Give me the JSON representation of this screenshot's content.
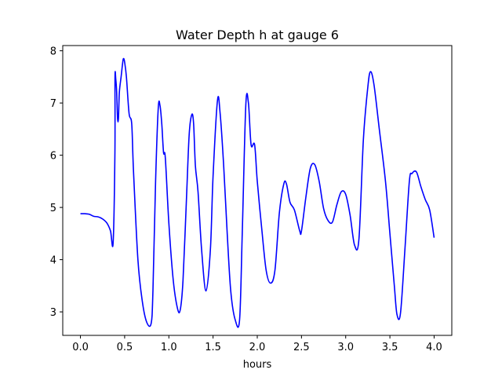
{
  "chart_data": {
    "type": "line",
    "title": "Water Depth h at gauge 6",
    "xlabel": "hours",
    "ylabel": "",
    "xlim": [
      -0.2,
      4.2
    ],
    "ylim": [
      2.55,
      8.1
    ],
    "grid": false,
    "legend": "none",
    "xticks": [
      {
        "value": 0.0,
        "label": "0.0"
      },
      {
        "value": 0.5,
        "label": "0.5"
      },
      {
        "value": 1.0,
        "label": "1.0"
      },
      {
        "value": 1.5,
        "label": "1.5"
      },
      {
        "value": 2.0,
        "label": "2.0"
      },
      {
        "value": 2.5,
        "label": "2.5"
      },
      {
        "value": 3.0,
        "label": "3.0"
      },
      {
        "value": 3.5,
        "label": "3.5"
      },
      {
        "value": 4.0,
        "label": "4.0"
      }
    ],
    "yticks": [
      {
        "value": 3,
        "label": "3"
      },
      {
        "value": 4,
        "label": "4"
      },
      {
        "value": 5,
        "label": "5"
      },
      {
        "value": 6,
        "label": "6"
      },
      {
        "value": 7,
        "label": "7"
      },
      {
        "value": 8,
        "label": "8"
      }
    ],
    "series": [
      {
        "color": "#0000ff",
        "x": [
          0.0,
          0.05,
          0.1,
          0.15,
          0.2,
          0.25,
          0.3,
          0.34,
          0.37,
          0.39,
          0.391,
          0.4,
          0.41,
          0.42,
          0.43,
          0.44,
          0.46,
          0.48,
          0.49,
          0.5,
          0.52,
          0.55,
          0.58,
          0.6,
          0.65,
          0.7,
          0.75,
          0.8,
          0.82,
          0.85,
          0.88,
          0.9,
          0.92,
          0.94,
          0.96,
          1.0,
          1.05,
          1.1,
          1.13,
          1.16,
          1.2,
          1.23,
          1.26,
          1.28,
          1.3,
          1.33,
          1.37,
          1.42,
          1.47,
          1.5,
          1.55,
          1.58,
          1.62,
          1.66,
          1.7,
          1.75,
          1.8,
          1.83,
          1.87,
          1.9,
          1.93,
          1.97,
          2.0,
          2.05,
          2.1,
          2.15,
          2.2,
          2.25,
          2.3,
          2.33,
          2.37,
          2.42,
          2.48,
          2.5,
          2.55,
          2.6,
          2.65,
          2.7,
          2.75,
          2.8,
          2.85,
          2.9,
          2.95,
          3.0,
          3.05,
          3.1,
          3.15,
          3.2,
          3.25,
          3.28,
          3.32,
          3.38,
          3.45,
          3.5,
          3.55,
          3.58,
          3.62,
          3.67,
          3.72,
          3.75,
          3.8,
          3.85,
          3.9,
          3.95,
          4.0
        ],
        "y": [
          4.88,
          4.88,
          4.87,
          4.83,
          4.82,
          4.78,
          4.7,
          4.55,
          4.33,
          6.05,
          7.5,
          7.45,
          7.2,
          6.7,
          6.7,
          7.2,
          7.5,
          7.8,
          7.85,
          7.78,
          7.5,
          6.8,
          6.6,
          5.7,
          4.0,
          3.2,
          2.8,
          2.78,
          3.4,
          5.5,
          6.9,
          6.95,
          6.6,
          6.05,
          5.95,
          4.7,
          3.6,
          3.05,
          3.05,
          3.6,
          5.2,
          6.4,
          6.78,
          6.6,
          5.8,
          5.3,
          4.2,
          3.4,
          4.2,
          5.6,
          7.05,
          6.8,
          5.8,
          4.5,
          3.4,
          2.85,
          2.85,
          4.5,
          6.95,
          7.0,
          6.2,
          6.2,
          5.5,
          4.6,
          3.8,
          3.55,
          3.8,
          4.9,
          5.45,
          5.45,
          5.1,
          4.95,
          4.55,
          4.55,
          5.2,
          5.75,
          5.82,
          5.5,
          4.98,
          4.75,
          4.72,
          5.05,
          5.3,
          5.25,
          4.85,
          4.28,
          4.4,
          6.3,
          7.3,
          7.6,
          7.35,
          6.5,
          5.5,
          4.5,
          3.5,
          2.95,
          2.98,
          4.2,
          5.5,
          5.65,
          5.68,
          5.4,
          5.15,
          4.95,
          4.42
        ]
      }
    ]
  }
}
